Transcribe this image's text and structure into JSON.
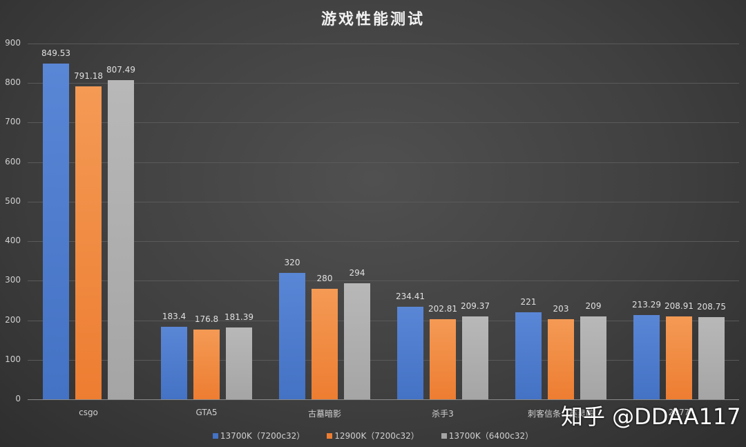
{
  "chart_data": {
    "type": "bar",
    "title": "游戏性能测试",
    "xlabel": "",
    "ylabel": "",
    "ylim": [
      0,
      900
    ],
    "yticks": [
      0,
      100,
      200,
      300,
      400,
      500,
      600,
      700,
      800,
      900
    ],
    "grid": true,
    "legend_position": "bottom",
    "categories": [
      "csgo",
      "GTA5",
      "古墓暗影",
      "杀手3",
      "刺客信条：英灵殿",
      "2077"
    ],
    "series": [
      {
        "name": "13700K（7200c32）",
        "color": "#4472c4",
        "values": [
          849.53,
          183.4,
          320,
          234.41,
          221,
          213.29
        ],
        "labels": [
          "849.53",
          "183.4",
          "320",
          "234.41",
          "221",
          "213.29"
        ]
      },
      {
        "name": "12900K（7200c32）",
        "color": "#ed7d31",
        "values": [
          791.18,
          176.8,
          280,
          202.81,
          203,
          208.91
        ],
        "labels": [
          "791.18",
          "176.8",
          "280",
          "202.81",
          "203",
          "208.91"
        ]
      },
      {
        "name": "13700K（6400c32）",
        "color": "#a5a5a5",
        "values": [
          807.49,
          181.39,
          294,
          209.37,
          209,
          208.75
        ],
        "labels": [
          "807.49",
          "181.39",
          "294",
          "209.37",
          "209",
          "208.75"
        ]
      }
    ]
  },
  "watermark": "知乎 @DDAA117"
}
